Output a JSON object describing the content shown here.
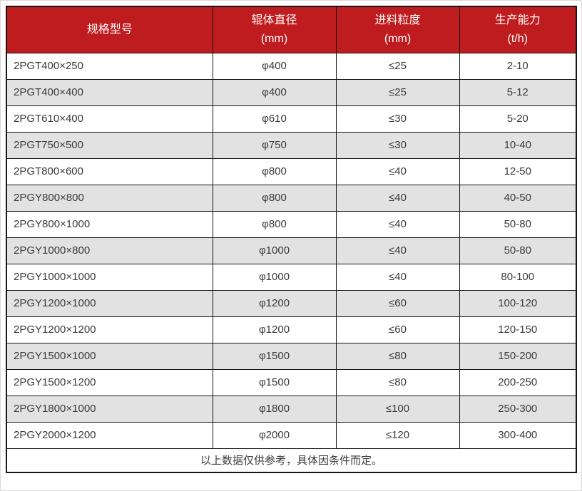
{
  "table": {
    "columns": [
      {
        "label": "规格型号",
        "unit": ""
      },
      {
        "label": "辊体直径",
        "unit": "(mm)"
      },
      {
        "label": "进料粒度",
        "unit": "(mm)"
      },
      {
        "label": "生产能力",
        "unit": "(t/h)"
      }
    ],
    "rows": [
      [
        "2PGT400×250",
        "φ400",
        "≤25",
        "2-10"
      ],
      [
        "2PGT400×400",
        "φ400",
        "≤25",
        "5-12"
      ],
      [
        "2PGT610×400",
        "φ610",
        "≤30",
        "5-20"
      ],
      [
        "2PGT750×500",
        "φ750",
        "≤30",
        "10-40"
      ],
      [
        "2PGT800×600",
        "φ800",
        "≤40",
        "12-50"
      ],
      [
        "2PGY800×800",
        "φ800",
        "≤40",
        "40-50"
      ],
      [
        "2PGY800×1000",
        "φ800",
        "≤40",
        "50-80"
      ],
      [
        "2PGY1000×800",
        "φ1000",
        "≤40",
        "50-80"
      ],
      [
        "2PGY1000×1000",
        "φ1000",
        "≤40",
        "80-100"
      ],
      [
        "2PGY1200×1000",
        "φ1200",
        "≤60",
        "100-120"
      ],
      [
        "2PGY1200×1200",
        "φ1200",
        "≤60",
        "120-150"
      ],
      [
        "2PGY1500×1000",
        "φ1500",
        "≤80",
        "150-200"
      ],
      [
        "2PGY1500×1200",
        "φ1500",
        "≤80",
        "200-250"
      ],
      [
        "2PGY1800×1000",
        "φ1800",
        "≤100",
        "250-300"
      ],
      [
        "2PGY2000×1200",
        "φ2000",
        "≤120",
        "300-400"
      ]
    ],
    "footer": "以上数据仅供参考，具体因条件而定。"
  },
  "colors": {
    "header_background": "#be1c1e",
    "header_text": "#ffffff",
    "stripe_row_background": "#e2e2e2",
    "grid_border": "#161616",
    "body_text": "#3b3b3b"
  }
}
